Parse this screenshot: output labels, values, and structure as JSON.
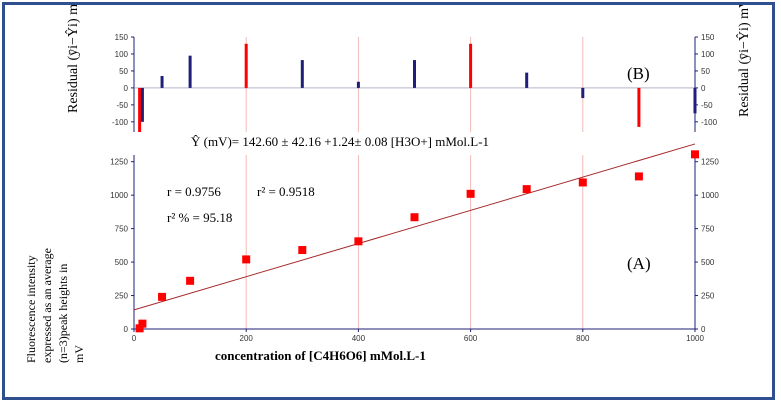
{
  "chart_data": [
    {
      "id": "B",
      "type": "bar",
      "panel_label": "(B)",
      "ylabel_left": "Residual (ȳi−Ŷi) mV",
      "ylabel_right": "Residual (ȳi−Ŷi) mV",
      "x": [
        10,
        15,
        50,
        100,
        200,
        300,
        400,
        500,
        600,
        700,
        800,
        900,
        1000
      ],
      "values": [
        -130,
        -100,
        35,
        95,
        130,
        82,
        18,
        82,
        130,
        45,
        -30,
        -115,
        -75
      ],
      "colors": [
        "#ff0000",
        "#1f1f7a",
        "#1f1f7a",
        "#1f1f7a",
        "#ff0000",
        "#1f1f7a",
        "#1f1f7a",
        "#1f1f7a",
        "#ff0000",
        "#1f1f7a",
        "#1f1f7a",
        "#ff0000",
        "#1f1f7a"
      ],
      "yticks": [
        150,
        100,
        50,
        0,
        -50,
        -100
      ],
      "ylim": [
        -130,
        150
      ],
      "grid_vertical": true
    },
    {
      "id": "A",
      "type": "scatter",
      "panel_label": "(A)",
      "equation": "Ŷ (mV)= 142.60 ± 42.16 +1.24± 0.08 [H3O+] mMol.L-1",
      "stats": [
        "r = 0.9756",
        "r² = 0.9518",
        "r² % = 95.18"
      ],
      "ylabel_left": [
        "Fluorescence intensity",
        "expressed as an average",
        "(n=3)peak heights in",
        "mV"
      ],
      "xlabel": "concentration of  [C4H6O6] mMol.L-1",
      "x": [
        10,
        15,
        50,
        100,
        200,
        300,
        400,
        500,
        600,
        700,
        800,
        900,
        1000
      ],
      "y": [
        5,
        40,
        240,
        360,
        520,
        590,
        655,
        835,
        1010,
        1045,
        1095,
        1140,
        1305
      ],
      "fit": {
        "intercept": 142.6,
        "slope": 1.24
      },
      "xticks": [
        0,
        200,
        400,
        600,
        800,
        1000
      ],
      "yticks": [
        0,
        250,
        500,
        750,
        1000,
        1250
      ],
      "xlim": [
        0,
        1000
      ],
      "ylim": [
        0,
        1300
      ],
      "marker_color": "#ff0000",
      "line_color": "#a52a2a",
      "grid_vertical": true
    }
  ]
}
